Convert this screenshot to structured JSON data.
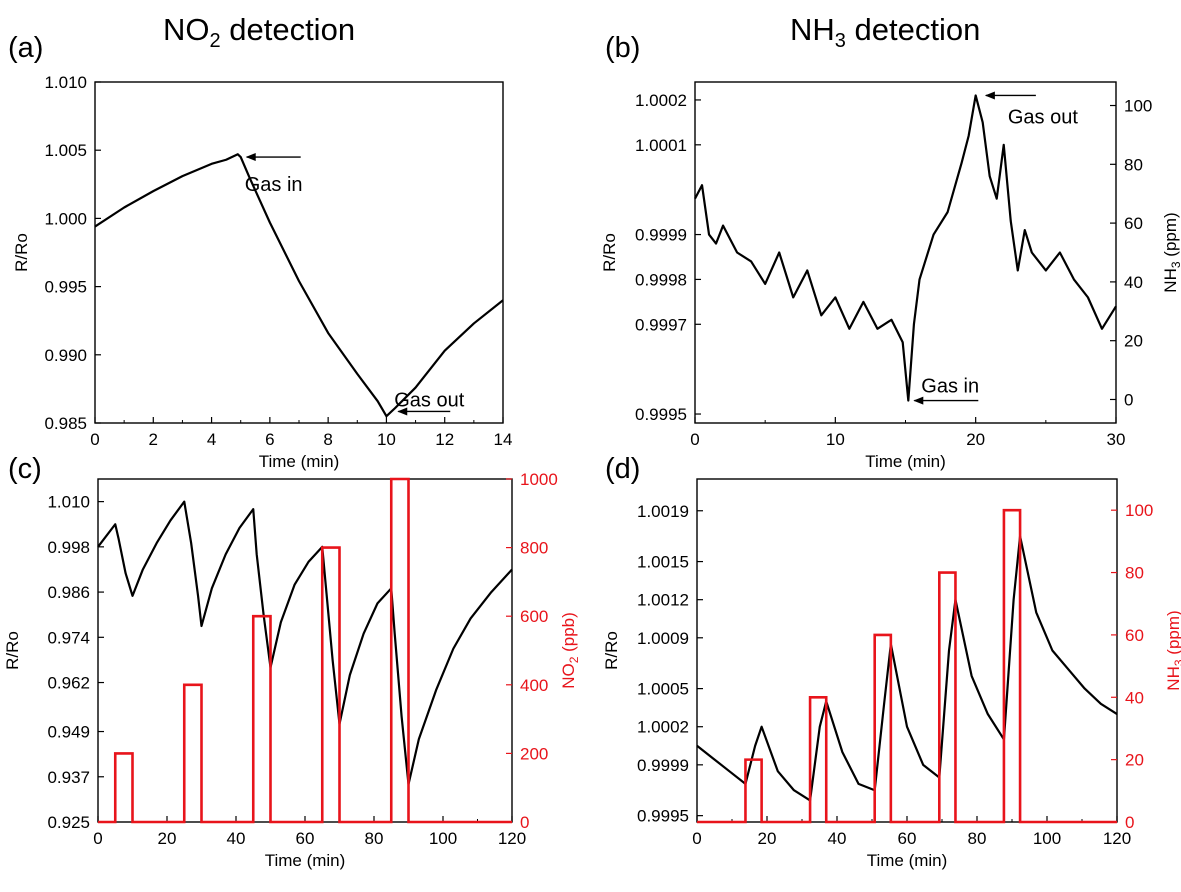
{
  "titles": {
    "a": {
      "main": "NO",
      "sub": "2",
      "rest": " detection"
    },
    "b": {
      "main": "NH",
      "sub": "3",
      "rest": " detection"
    }
  },
  "panel_labels": [
    "(a)",
    "(b)",
    "(c)",
    "(d)"
  ],
  "colors": {
    "response": "#000000",
    "gas": "#e8141b",
    "axis": "#000000"
  },
  "chart_data": [
    {
      "id": "a",
      "type": "line",
      "xlabel": "Time (min)",
      "ylabel": "R/Ro",
      "xlim": [
        0,
        14
      ],
      "ylim": [
        0.985,
        1.01
      ],
      "xticks": [
        "0",
        "2",
        "4",
        "6",
        "8",
        "10",
        "12",
        "14"
      ],
      "yticks": [
        "0.985",
        "0.990",
        "0.995",
        "1.000",
        "1.005",
        "1.010"
      ],
      "series": [
        {
          "x": [
            0,
            1,
            2,
            3,
            4,
            4.5,
            4.9,
            5.0,
            5.3,
            6,
            7,
            8,
            9,
            9.7,
            10.0,
            10.3,
            11,
            12,
            13,
            14
          ],
          "y": [
            0.9994,
            1.0008,
            1.002,
            1.0031,
            1.004,
            1.0043,
            1.0047,
            1.0045,
            1.003,
            0.9997,
            0.9954,
            0.9916,
            0.9886,
            0.9866,
            0.9855,
            0.9861,
            0.9876,
            0.9903,
            0.9923,
            0.994
          ]
        }
      ],
      "annotations": [
        {
          "text": "Gas in",
          "x": 5.0,
          "y": 1.0045
        },
        {
          "text": "Gas out",
          "x": 10.2,
          "y": 0.9857
        }
      ]
    },
    {
      "id": "b",
      "type": "line",
      "xlabel": "Time (min)",
      "ylabel": "R/Ro",
      "y2label": "NH3 (ppm)",
      "xlim": [
        0,
        30
      ],
      "ylim": [
        0.99948,
        1.00024
      ],
      "y2lim": [
        -8,
        108
      ],
      "xticks": [
        "0",
        "10",
        "20",
        "30"
      ],
      "yticks": [
        "0.9995",
        "0.9997",
        "0.9998",
        "0.9999",
        "1.0001",
        "1.0002"
      ],
      "ytick_values": [
        0.9995,
        0.9997,
        0.9998,
        0.9999,
        1.0001,
        1.0002
      ],
      "y2ticks": [
        "0",
        "20",
        "40",
        "60",
        "80",
        "100"
      ],
      "series": [
        {
          "x": [
            0,
            0.5,
            1,
            1.5,
            2,
            3,
            4,
            5,
            6,
            7,
            8,
            9,
            10,
            11,
            12,
            13,
            14,
            14.8,
            15.2,
            15.6,
            16,
            17,
            18,
            19,
            19.5,
            20,
            20.5,
            21,
            21.5,
            22,
            22.5,
            23,
            23.5,
            24,
            25,
            26,
            27,
            28,
            29,
            30
          ],
          "y": [
            0.99998,
            1.00001,
            0.9999,
            0.99988,
            0.99992,
            0.99986,
            0.99984,
            0.99979,
            0.99986,
            0.99976,
            0.99982,
            0.99972,
            0.99976,
            0.99969,
            0.99975,
            0.99969,
            0.99971,
            0.99966,
            0.99953,
            0.9997,
            0.9998,
            0.9999,
            0.99995,
            1.00006,
            1.00012,
            1.00021,
            1.00015,
            1.00003,
            0.99998,
            1.0001,
            0.99993,
            0.99982,
            0.99991,
            0.99986,
            0.99982,
            0.99986,
            0.9998,
            0.99976,
            0.99969,
            0.99974
          ]
        }
      ],
      "annotations": [
        {
          "text": "Gas out",
          "x": 20.3,
          "y": 1.00021
        },
        {
          "text": "Gas in",
          "x": 15.2,
          "y": 0.99953
        }
      ]
    },
    {
      "id": "c",
      "type": "line",
      "xlabel": "Time (min)",
      "ylabel": "R/Ro",
      "y2label": "NO2 (ppb)",
      "xlim": [
        0,
        120
      ],
      "ylim": [
        0.925,
        1.016
      ],
      "y2lim": [
        0,
        1000
      ],
      "xticks": [
        "0",
        "20",
        "40",
        "60",
        "80",
        "100",
        "120"
      ],
      "yticks": [
        "0.925",
        "0.937",
        "0.949",
        "0.962",
        "0.974",
        "0.986",
        "0.998",
        "1.010"
      ],
      "ytick_values": [
        0.925,
        0.937,
        0.949,
        0.962,
        0.974,
        0.986,
        0.998,
        1.01
      ],
      "y2ticks": [
        "0",
        "200",
        "400",
        "600",
        "800",
        "1000"
      ],
      "series": [
        {
          "name": "R/Ro",
          "x": [
            0,
            5,
            6,
            8,
            10,
            13,
            17,
            21,
            25,
            27,
            29,
            30,
            33,
            37,
            41,
            45,
            46,
            48,
            50,
            53,
            57,
            61,
            65,
            66,
            68,
            70,
            73,
            77,
            81,
            85,
            86,
            88,
            90,
            93,
            98,
            103,
            108,
            114,
            120
          ],
          "y": [
            0.998,
            1.004,
            1.0,
            0.991,
            0.985,
            0.992,
            0.999,
            1.005,
            1.01,
            0.999,
            0.985,
            0.977,
            0.987,
            0.996,
            1.003,
            1.008,
            0.996,
            0.98,
            0.966,
            0.978,
            0.988,
            0.994,
            0.998,
            0.988,
            0.968,
            0.951,
            0.964,
            0.975,
            0.983,
            0.987,
            0.975,
            0.953,
            0.935,
            0.947,
            0.96,
            0.971,
            0.979,
            0.986,
            0.992
          ]
        },
        {
          "name": "NO2 (ppb)",
          "steps": [
            [
              5,
              10,
              200
            ],
            [
              25,
              30,
              400
            ],
            [
              45,
              50,
              600
            ],
            [
              65,
              70,
              800
            ],
            [
              85,
              90,
              1000
            ]
          ]
        }
      ]
    },
    {
      "id": "d",
      "type": "line",
      "xlabel": "Time (min)",
      "ylabel": "R/Ro",
      "y2label": "NH3 (ppm)",
      "xlim": [
        0,
        130
      ],
      "ylim": [
        0.99945,
        1.00215
      ],
      "y2lim": [
        0,
        110
      ],
      "xticks": [
        "0",
        "20",
        "40",
        "60",
        "80",
        "100",
        "120"
      ],
      "yticks": [
        "0.9995",
        "0.9999",
        "1.0002",
        "1.0005",
        "1.0009",
        "1.0012",
        "1.0015",
        "1.0019"
      ],
      "ytick_values": [
        0.9995,
        0.9999,
        1.0002,
        1.0005,
        1.0009,
        1.0012,
        1.0015,
        1.0019
      ],
      "y2ticks": [
        "0",
        "20",
        "40",
        "60",
        "80",
        "100"
      ],
      "series": [
        {
          "name": "R/Ro",
          "x": [
            0,
            5,
            10,
            15,
            18,
            20,
            25,
            30,
            35,
            38,
            40,
            45,
            50,
            55,
            58,
            60,
            65,
            70,
            75,
            78,
            80,
            85,
            90,
            95,
            98,
            100,
            105,
            110,
            115,
            120,
            125,
            130
          ],
          "y": [
            1.00005,
            0.99995,
            0.99985,
            0.99975,
            1.00005,
            1.0002,
            0.99985,
            0.9997,
            0.99962,
            1.0002,
            1.0004,
            1.0,
            0.99975,
            0.9997,
            1.0004,
            1.00085,
            1.0002,
            0.9999,
            0.9998,
            1.0008,
            1.0012,
            1.0006,
            1.0003,
            1.0001,
            1.0012,
            1.0017,
            1.0011,
            1.0008,
            1.00065,
            1.0005,
            1.00038,
            1.0003
          ]
        },
        {
          "name": "NH3 (ppm)",
          "steps": [
            [
              15,
              20,
              20
            ],
            [
              35,
              40,
              40
            ],
            [
              55,
              60,
              60
            ],
            [
              75,
              80,
              80
            ],
            [
              95,
              100,
              100
            ]
          ]
        }
      ]
    }
  ]
}
